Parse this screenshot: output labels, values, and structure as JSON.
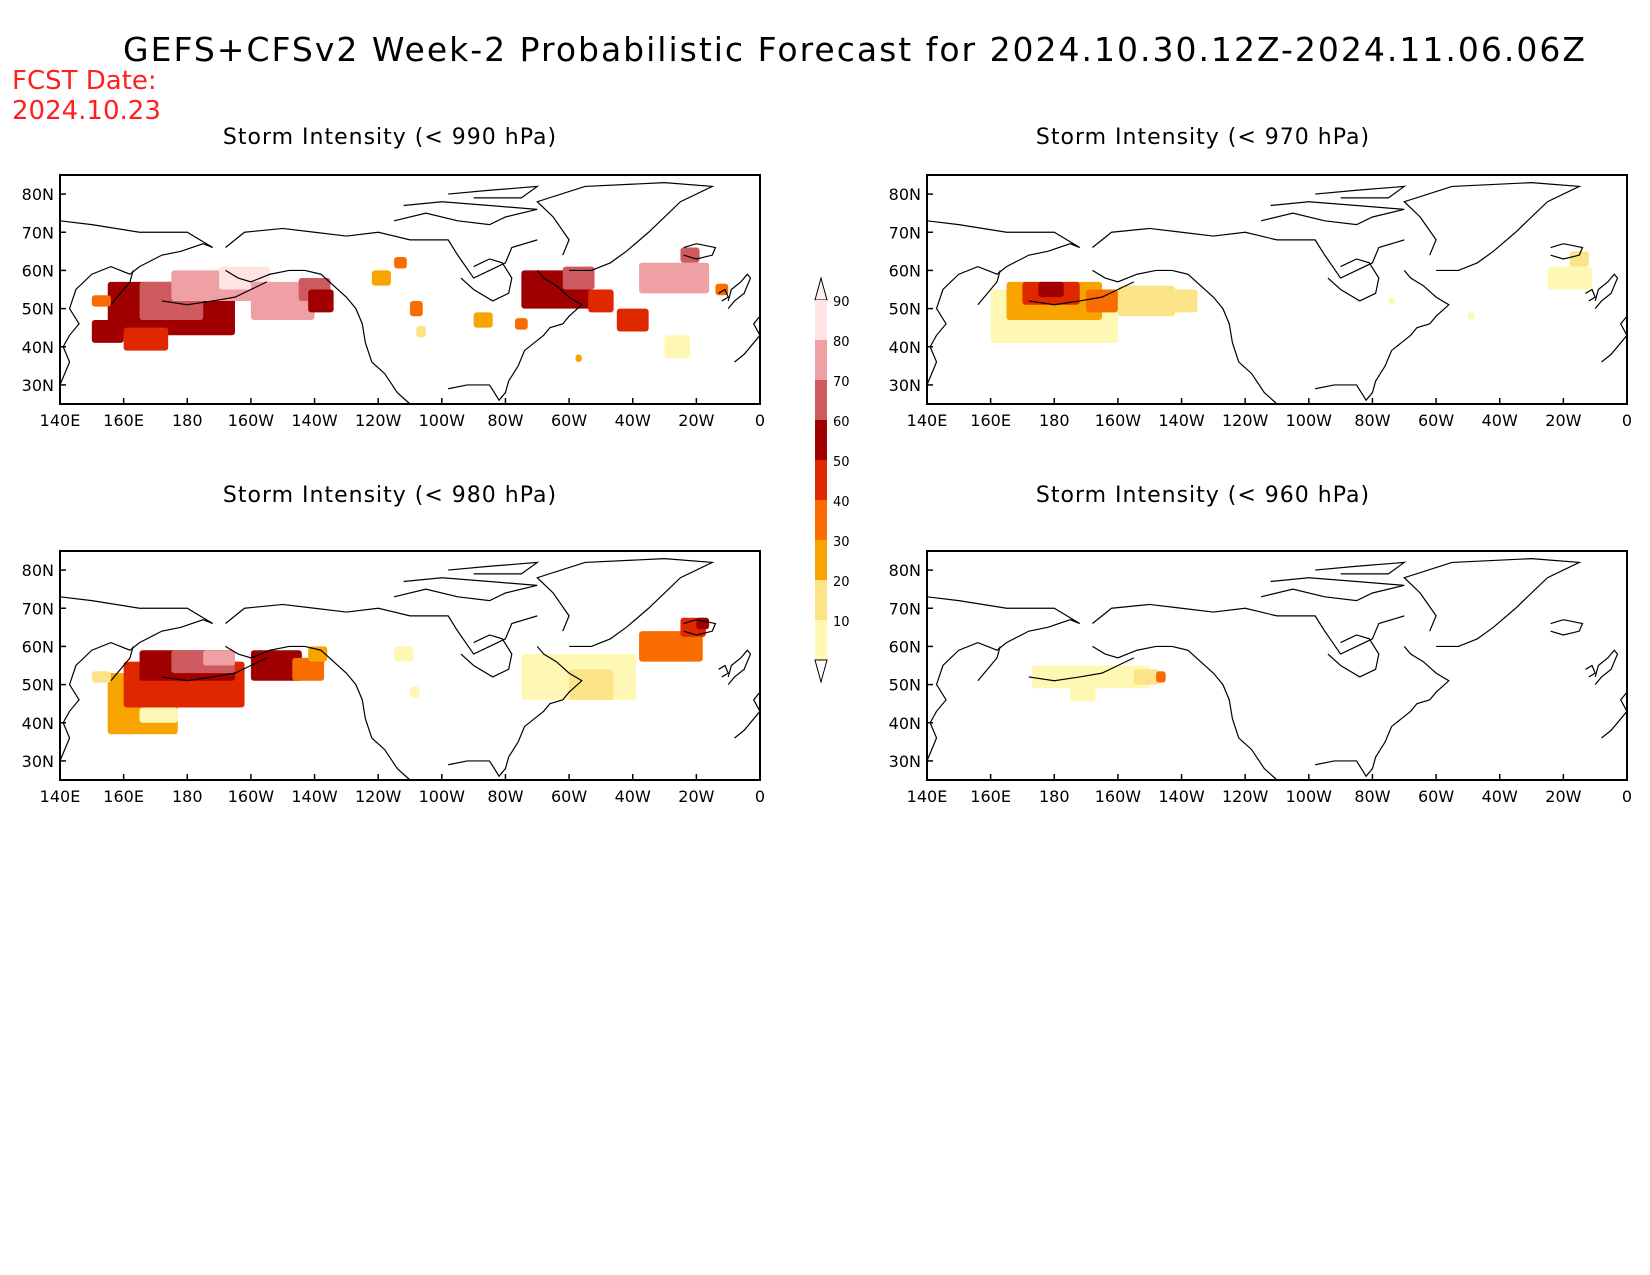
{
  "title": "GEFS+CFSv2 Week-2 Probabilistic Forecast for 2024.10.30.12Z-2024.11.06.06Z",
  "fcst_date_label": "FCST Date:",
  "fcst_date_value": "2024.10.23",
  "panels": [
    {
      "title": "Storm Intensity (< 990 hPa)",
      "position": "top-left"
    },
    {
      "title": "Storm Intensity (< 970 hPa)",
      "position": "top-right"
    },
    {
      "title": "Storm Intensity (< 980 hPa)",
      "position": "bottom-left"
    },
    {
      "title": "Storm Intensity (< 960 hPa)",
      "position": "bottom-right"
    }
  ],
  "lon_ticks": [
    "140E",
    "160E",
    "180",
    "160W",
    "140W",
    "120W",
    "100W",
    "80W",
    "60W",
    "40W",
    "20W",
    "0"
  ],
  "lat_ticks": [
    "80N",
    "70N",
    "60N",
    "50N",
    "40N",
    "30N"
  ],
  "colorbar": {
    "levels": [
      "10",
      "20",
      "30",
      "40",
      "50",
      "60",
      "70",
      "80",
      "90"
    ],
    "colors": [
      "#fff8b4",
      "#fbe488",
      "#f8a400",
      "#f86c00",
      "#e02800",
      "#a00000",
      "#cc5a5e",
      "#eea0a4",
      "#ffe4e4"
    ]
  }
}
